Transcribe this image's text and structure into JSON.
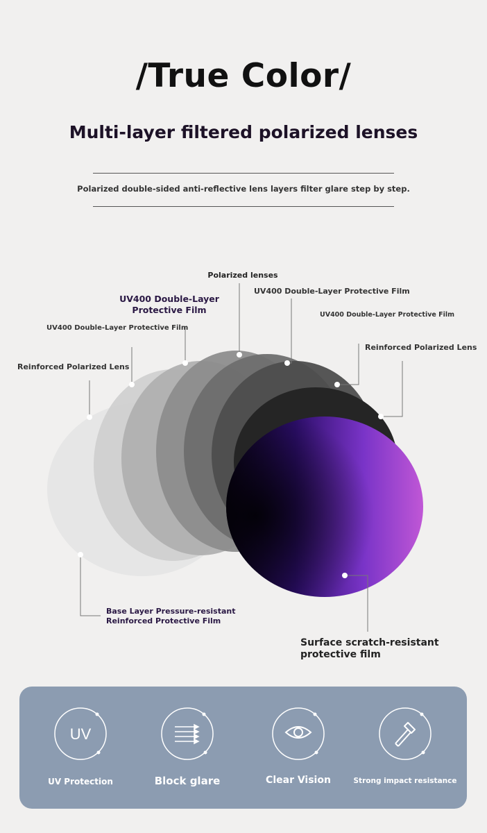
{
  "header": {
    "title": "/True Color/",
    "subtitle": "Multi-layer filtered polarized lenses",
    "description": "Polarized double-sided anti-reflective lens layers filter glare step by step."
  },
  "diagram": {
    "labels": {
      "polarized_lenses": "Polarized lenses",
      "uv400_top_right": "UV400 Double-Layer Protective Film",
      "uv400_small_right": "UV400 Double-Layer Protective Film",
      "reinforced_right": "Reinforced Polarized Lens",
      "uv400_emphasis_line1": "UV400 Double-Layer",
      "uv400_emphasis_line2": "Protective Film",
      "uv400_left": "UV400 Double-Layer Protective Film",
      "reinforced_left": "Reinforced Polarized Lens",
      "base_line1": "Base Layer Pressure-resistant",
      "base_line2": "Reinforced Protective Film",
      "surface_line1": "Surface scratch-resistant",
      "surface_line2": "protective film"
    },
    "colors": {
      "lens_purple": "#b04fd8",
      "lens_dark": "#120628"
    }
  },
  "features": [
    {
      "label": "UV Protection",
      "icon": "uv-icon",
      "icon_text": "UV"
    },
    {
      "label": "Block glare",
      "icon": "arrows-icon"
    },
    {
      "label": "Clear Vision",
      "icon": "eye-icon"
    },
    {
      "label": "Strong impact resistance",
      "icon": "hammer-icon"
    }
  ]
}
